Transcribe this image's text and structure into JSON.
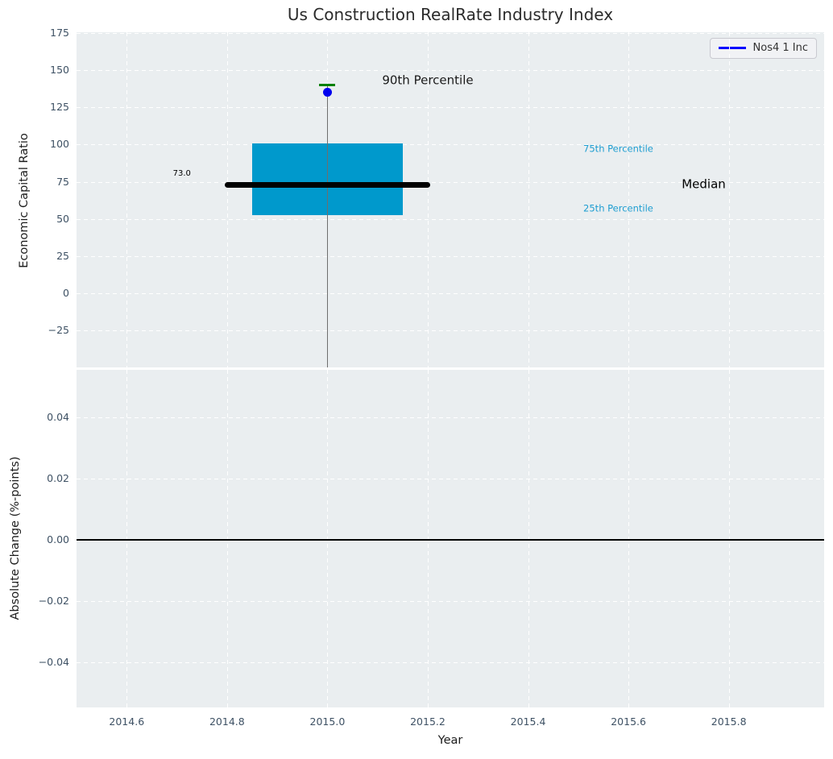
{
  "figure": {
    "background": "#ffffff",
    "plot_background": "#eaeef0",
    "grid_color": "#ffffff",
    "tick_color": "#3e5164",
    "text_color": "#1c1c1c"
  },
  "chart_data": [
    {
      "type": "boxplot",
      "title": "Us Construction RealRate Industry Index",
      "ylabel": "Economic Capital Ratio",
      "legend": {
        "label": "Nos4 1 Inc",
        "line_color": "#0000ff"
      },
      "xlim": [
        2014.5,
        2015.99
      ],
      "ylim": [
        -50,
        175.6
      ],
      "yticks": [
        175,
        150,
        125,
        100,
        75,
        50,
        25,
        0,
        -25
      ],
      "ytick_labels": [
        "175",
        "150",
        "125",
        "100",
        "75",
        "50",
        "25",
        "0",
        "−25"
      ],
      "xticks": [
        2014.6,
        2014.8,
        2015.0,
        2015.2,
        2015.4,
        2015.6,
        2015.8
      ],
      "grid": true,
      "legend_position": "upper right",
      "box": {
        "center_x": 2015.0,
        "q1": 52.5,
        "q3": 101,
        "median": 73.0,
        "p90": 140,
        "marker_value": 135,
        "box_left": 2014.85,
        "box_right": 2015.15,
        "median_left": 2014.795,
        "median_right": 2015.205,
        "cap_halfwidth": 0.016,
        "whisker_low_clipped_at": -50,
        "box_color": "#0099cc",
        "median_color": "#000000",
        "whisker_color": "#6e6e6e",
        "cap_color": "#008000",
        "marker_color": "#0000ee"
      },
      "annotations": [
        {
          "name": "annotation-90th-percentile",
          "text": "90th Percentile",
          "x": 2015.2,
          "y": 143,
          "color": "#1a1a1a",
          "size": 15,
          "align": "center"
        },
        {
          "name": "annotation-median-value",
          "text": "73.0",
          "x": 2014.71,
          "y": 80,
          "color": "#000000",
          "size": 10,
          "align": "center"
        },
        {
          "name": "annotation-75th-percentile",
          "text": "75th Percentile",
          "x": 2015.51,
          "y": 97,
          "color": "#1f9ed1",
          "size": 11.5,
          "align": "left"
        },
        {
          "name": "annotation-median",
          "text": "Median",
          "x": 2015.75,
          "y": 73,
          "color": "#000000",
          "size": 15,
          "align": "center"
        },
        {
          "name": "annotation-25th-percentile",
          "text": "25th Percentile",
          "x": 2015.51,
          "y": 57,
          "color": "#1f9ed1",
          "size": 11.5,
          "align": "left"
        }
      ]
    },
    {
      "type": "line",
      "ylabel": "Absolute Change (%-points)",
      "xlabel": "Year",
      "xlim": [
        2014.5,
        2015.99
      ],
      "ylim": [
        -0.0547,
        0.0555
      ],
      "yticks": [
        0.04,
        0.02,
        0.0,
        -0.02,
        -0.04
      ],
      "ytick_labels": [
        "0.04",
        "0.02",
        "0.00",
        "−0.02",
        "−0.04"
      ],
      "xticks": [
        2014.6,
        2014.8,
        2015.0,
        2015.2,
        2015.4,
        2015.6,
        2015.8
      ],
      "xtick_labels": [
        "2014.6",
        "2014.8",
        "2015.0",
        "2015.2",
        "2015.4",
        "2015.6",
        "2015.8"
      ],
      "grid": true,
      "zero_line": {
        "y": 0.0,
        "color": "#000000"
      }
    }
  ]
}
